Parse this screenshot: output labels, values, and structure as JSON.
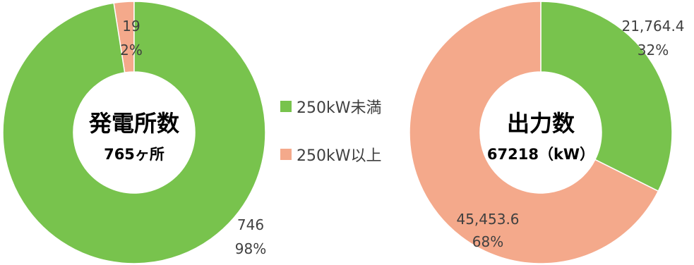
{
  "colors": {
    "under_250kw": "#78c34d",
    "over_250kw": "#f4a98b"
  },
  "legend": [
    {
      "label": "250kW未満",
      "color_key": "under_250kw"
    },
    {
      "label": "250kW以上",
      "color_key": "over_250kw"
    }
  ],
  "chart_data": [
    {
      "type": "donut",
      "center_title": "発電所数",
      "center_subtitle": "765ヶ所",
      "slices": [
        {
          "series": "250kW以上",
          "value": 19,
          "value_text": "19",
          "percent_text": "2%"
        },
        {
          "series": "250kW未満",
          "value": 746,
          "value_text": "746",
          "percent_text": "98%"
        }
      ]
    },
    {
      "type": "donut",
      "center_title": "出力数",
      "center_subtitle": "67218（kW）",
      "slices": [
        {
          "series": "250kW未満",
          "value": 21764.4,
          "value_text": "21,764.4",
          "percent_text": "32%"
        },
        {
          "series": "250kW以上",
          "value": 45453.6,
          "value_text": "45,453.6",
          "percent_text": "68%"
        }
      ]
    }
  ]
}
